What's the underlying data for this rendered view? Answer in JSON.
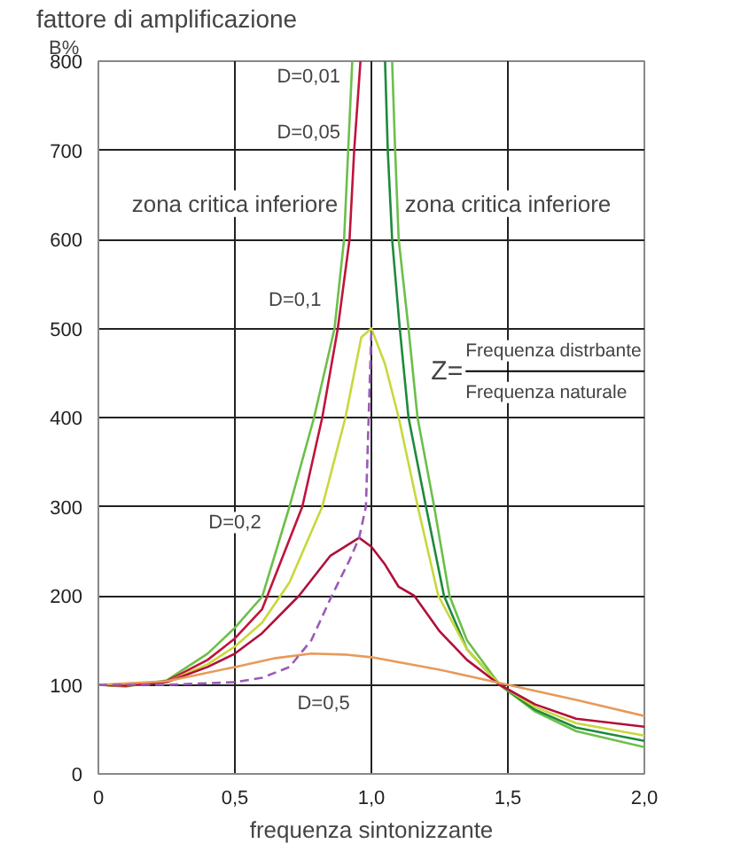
{
  "chart_data": {
    "type": "line",
    "title": "fattore di amplificazione",
    "ylabel": "B%",
    "xlabel": "frequenza sintonizzante",
    "xlim": [
      0,
      2
    ],
    "ylim": [
      0,
      800
    ],
    "xticks": [
      0,
      {
        "value": 0.5,
        "label": "0,5"
      },
      {
        "value": 1,
        "label": "1,0"
      },
      {
        "value": 1.5,
        "label": "1,5"
      },
      {
        "value": 2,
        "label": "2,0"
      }
    ],
    "yticks": [
      0,
      100,
      200,
      300,
      400,
      500,
      600,
      700,
      800
    ],
    "grid": true,
    "marker": "none",
    "series": [
      {
        "color": "#6cbf4a",
        "x": [
          0,
          0.1,
          0.25,
          0.4,
          0.5,
          0.6,
          0.7,
          0.79,
          0.865,
          0.9,
          0.915,
          0.93
        ],
        "values": [
          100,
          98,
          105,
          135,
          164,
          199,
          300,
          400,
          500,
          600,
          700,
          800
        ]
      },
      {
        "color": "#6cbf4a",
        "x": [
          1.076,
          1.087,
          1.1,
          1.136,
          1.169,
          1.23,
          1.286,
          1.35,
          1.47,
          1.6,
          1.75,
          2
        ],
        "values": [
          800,
          700,
          600,
          500,
          400,
          300,
          200,
          150,
          100,
          70,
          48,
          30
        ]
      },
      {
        "color": "#c0143c",
        "x": [
          0,
          0.1,
          0.25,
          0.4,
          0.5,
          0.6,
          0.747,
          0.82,
          0.877,
          0.92,
          0.937,
          0.96
        ],
        "values": [
          100,
          99,
          104,
          128,
          152,
          185,
          300,
          400,
          500,
          600,
          700,
          800
        ]
      },
      {
        "color": "#1e8a3c",
        "x": [
          1.05,
          1.06,
          1.076,
          1.104,
          1.136,
          1.2,
          1.266,
          1.35,
          1.47,
          1.6,
          1.75,
          2
        ],
        "values": [
          800,
          700,
          600,
          500,
          400,
          300,
          200,
          140,
          100,
          72,
          52,
          37
        ]
      },
      {
        "color": "#c8d83a",
        "x": [
          0,
          0.1,
          0.25,
          0.4,
          0.5,
          0.6,
          0.7,
          0.82,
          0.905,
          0.963,
          1,
          1.05,
          1.1,
          1.17,
          1.245,
          1.35,
          1.47,
          1.6,
          1.75,
          2
        ],
        "values": [
          100,
          99,
          103,
          123,
          143,
          170,
          215,
          300,
          400,
          490,
          500,
          460,
          400,
          300,
          200,
          140,
          100,
          75,
          57,
          43
        ]
      },
      {
        "color": "#b0103a",
        "x": [
          0,
          0.1,
          0.25,
          0.4,
          0.5,
          0.6,
          0.735,
          0.85,
          0.955,
          1,
          1.05,
          1.1,
          1.157,
          1.25,
          1.35,
          1.47,
          1.6,
          1.75,
          2
        ],
        "values": [
          100,
          99,
          103,
          120,
          135,
          158,
          200,
          245,
          265,
          255,
          235,
          210,
          200,
          160,
          128,
          100,
          78,
          62,
          53
        ]
      },
      {
        "color": "#e89a5a",
        "x": [
          0,
          0.25,
          0.5,
          0.65,
          0.78,
          0.9,
          1,
          1.25,
          1.5,
          1.75,
          2
        ],
        "values": [
          100,
          104,
          120,
          130,
          135,
          134,
          131,
          117,
          100,
          83,
          65
        ]
      },
      {
        "color": "#9a5ab8",
        "line_style": "dashed",
        "x": [
          0,
          0.25,
          0.5,
          0.6,
          0.7,
          0.78,
          0.855,
          0.92,
          0.955,
          0.98,
          0.99,
          1
        ],
        "values": [
          100,
          100,
          103,
          108,
          120,
          150,
          200,
          240,
          265,
          300,
          400,
          500
        ]
      }
    ],
    "annotations": [
      "D=0,01",
      "D=0,05",
      "D=0,1",
      "D=0,2",
      "D=0,5",
      "zona critica inferiore",
      "zona critica inferiore",
      "Z=",
      "Frequenza distrbante",
      "Frequenza naturale"
    ]
  }
}
